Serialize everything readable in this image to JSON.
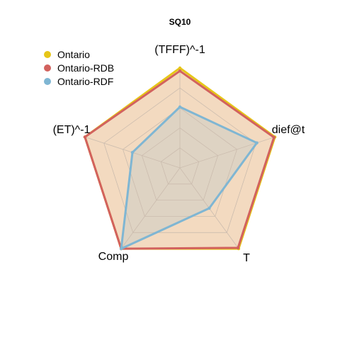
{
  "chart_data": {
    "type": "radar",
    "title": "SQ10",
    "axes": [
      "(TFFF)^-1",
      "dief@t",
      "T",
      "Comp",
      "(ET)^-1"
    ],
    "levels": 5,
    "grid": true,
    "legend_position": "top-left",
    "series": [
      {
        "name": "Ontario",
        "color": "#E6C619",
        "values": [
          1.0,
          1.0,
          1.0,
          1.0,
          1.0
        ]
      },
      {
        "name": "Ontario-RDB",
        "color": "#D2625E",
        "values": [
          0.97,
          0.99,
          0.99,
          1.0,
          1.0
        ]
      },
      {
        "name": "Ontario-RDF",
        "color": "#7FB6D3",
        "values": [
          0.61,
          0.81,
          0.5,
          1.0,
          0.5
        ]
      }
    ]
  }
}
